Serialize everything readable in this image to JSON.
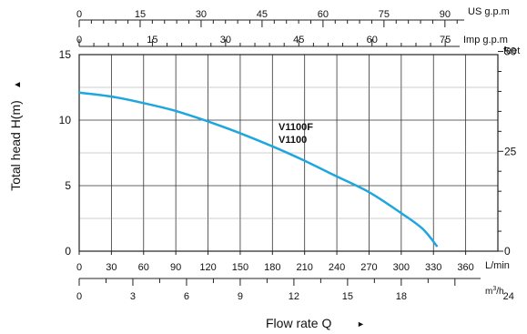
{
  "chart_data": {
    "type": "line",
    "series": [
      {
        "name": "V1100F V1100",
        "color": "#1ea6df",
        "x": [
          0,
          30,
          60,
          90,
          120,
          150,
          180,
          210,
          240,
          270,
          300,
          320,
          333
        ],
        "y": [
          12.1,
          11.8,
          11.3,
          10.7,
          9.9,
          9.0,
          8.0,
          6.9,
          5.7,
          4.5,
          2.9,
          1.7,
          0.4
        ]
      }
    ],
    "series_labels": [
      "V1100F",
      "V1100"
    ],
    "y_left": {
      "label": "Total head H(m)",
      "arrow": "▲",
      "ticks": [
        "0",
        "5",
        "10",
        "15"
      ],
      "range": [
        0,
        15
      ]
    },
    "y_right": {
      "unit": "feet",
      "ticks": [
        "0",
        "25",
        "50"
      ]
    },
    "x_bottom": {
      "unit": "L/min",
      "ticks": [
        "0",
        "30",
        "60",
        "90",
        "120",
        "150",
        "180",
        "210",
        "240",
        "270",
        "300",
        "330",
        "360"
      ],
      "range": [
        0,
        390
      ]
    },
    "x_m3h": {
      "unit_base": "m",
      "unit_sup": "3",
      "unit_tail": "/h",
      "ticks": [
        "0",
        "3",
        "6",
        "9",
        "12",
        "15",
        "18",
        "24"
      ]
    },
    "x_top_us": {
      "unit": "US g.p.m",
      "ticks": [
        "0",
        "15",
        "30",
        "45",
        "60",
        "75",
        "90"
      ]
    },
    "x_top_imp": {
      "unit": "Imp g.p.m",
      "ticks": [
        "0",
        "15",
        "30",
        "45",
        "60",
        "75"
      ]
    },
    "x_title": "Flow rate Q",
    "x_title_arrow": "►",
    "grid": true
  }
}
